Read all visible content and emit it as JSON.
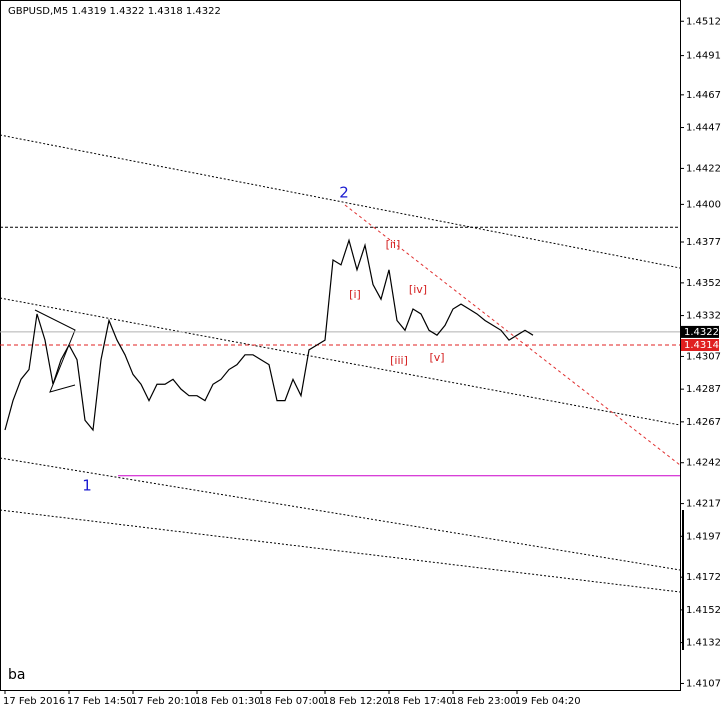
{
  "chart_data": {
    "type": "line",
    "title": "GBPUSD,M5  1.4319 1.4322 1.4318 1.4322",
    "annotations": [
      "2",
      "1",
      "[i]",
      "[ii]",
      "[iii]",
      "[iv]",
      "[v]",
      "ba"
    ],
    "categories": [
      "17 Feb 2016",
      null,
      null,
      null,
      null,
      null,
      null,
      null,
      "17 Feb 14:50",
      null,
      null,
      null,
      null,
      null,
      null,
      null,
      "17 Feb 20:10",
      null,
      null,
      null,
      null,
      null,
      null,
      null,
      "18 Feb 01:30",
      null,
      null,
      null,
      null,
      null,
      null,
      null,
      "18 Feb 07:00",
      null,
      null,
      null,
      null,
      null,
      null,
      null,
      "18 Feb 12:20",
      null,
      null,
      null,
      null,
      null,
      null,
      null,
      "18 Feb 17:40",
      null,
      null,
      null,
      null,
      null,
      null,
      null,
      "18 Feb 23:00",
      null,
      null,
      null,
      null,
      null,
      null,
      null,
      "19 Feb 04:20",
      null,
      null
    ],
    "series": [
      {
        "name": "GBPUSD,M5",
        "color": "#000000",
        "values": [
          1.4262,
          1.428,
          1.4293,
          1.4299,
          1.4333,
          1.4317,
          1.429,
          1.4305,
          1.4314,
          1.4305,
          1.4268,
          1.4262,
          1.4305,
          1.4329,
          1.4317,
          1.4308,
          1.4296,
          1.429,
          1.428,
          1.429,
          1.429,
          1.4293,
          1.4287,
          1.4283,
          1.4283,
          1.428,
          1.429,
          1.4293,
          1.4299,
          1.4302,
          1.4308,
          1.4308,
          1.4305,
          1.4302,
          1.428,
          1.428,
          1.4293,
          1.4283,
          1.4311,
          1.4314,
          1.4317,
          1.4366,
          1.4363,
          1.4378,
          1.436,
          1.4375,
          1.4351,
          1.4342,
          1.436,
          1.4329,
          1.4323,
          1.4336,
          1.4333,
          1.4323,
          1.432,
          1.4326,
          1.4336,
          1.4339,
          1.4336,
          1.4333,
          1.4329,
          1.4326,
          1.4323,
          1.4317,
          1.432,
          1.4323,
          1.432
        ]
      }
    ],
    "current_price": 1.4322,
    "red_level": 1.4314,
    "hlines": [
      {
        "value": 1.4386,
        "color": "#000000"
      },
      {
        "value": 1.4234,
        "color": "#cc00cc"
      }
    ],
    "ylim": [
      1.4103,
      1.4525
    ],
    "yticks": [
      1.4512,
      1.4491,
      1.4467,
      1.4447,
      1.4422,
      {
        "value": 1.44,
        "label": "1.4400"
      },
      1.4377,
      1.4352,
      1.4332,
      1.4307,
      1.4287,
      1.4267,
      1.4242,
      1.4217,
      1.4197,
      1.4172,
      1.4152,
      1.4132,
      1.4107
    ],
    "grid": false
  }
}
